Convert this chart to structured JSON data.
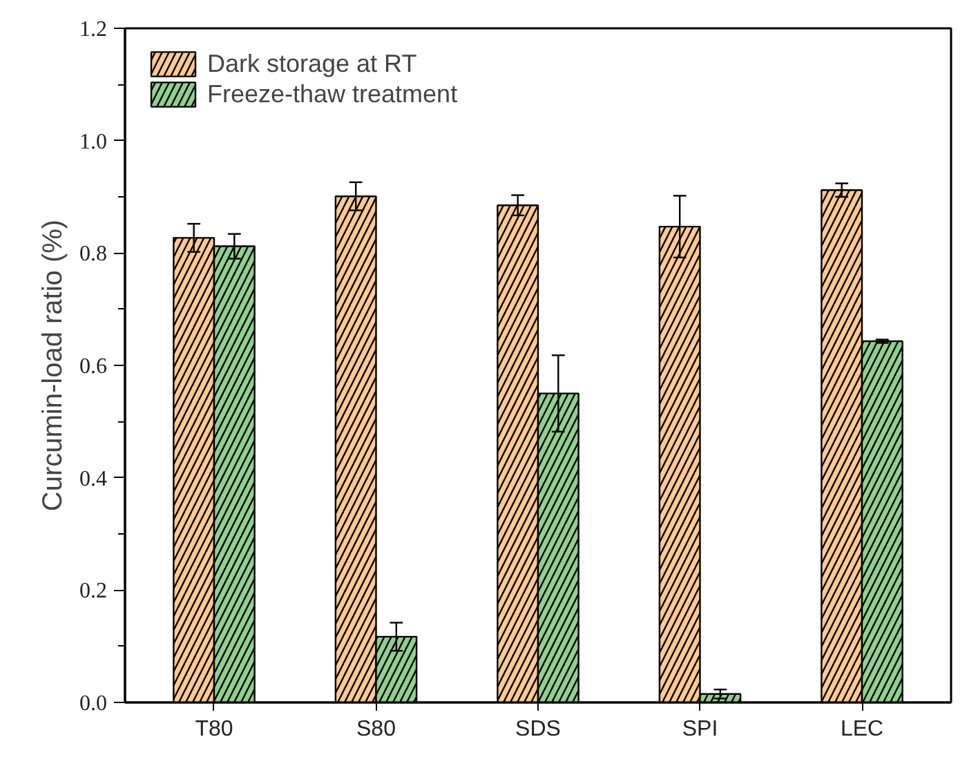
{
  "chart_data": {
    "type": "bar",
    "ylabel": "Curcumin-load ratio (%)",
    "categories": [
      "T80",
      "S80",
      "SDS",
      "SPI",
      "LEC"
    ],
    "series": [
      {
        "name": "Dark storage at RT",
        "color": "#fdc98f",
        "values": [
          0.827,
          0.901,
          0.885,
          0.847,
          0.912
        ],
        "errors": [
          0.025,
          0.025,
          0.018,
          0.055,
          0.012
        ]
      },
      {
        "name": "Freeze-thaw treatment",
        "color": "#8fd18f",
        "values": [
          0.812,
          0.117,
          0.55,
          0.015,
          0.643
        ],
        "errors": [
          0.022,
          0.025,
          0.068,
          0.008,
          0.003
        ]
      }
    ],
    "ylim": [
      0,
      1.2
    ],
    "yticks": [
      {
        "value": 0.0,
        "label": "0.0"
      },
      {
        "value": 0.1,
        "label": null
      },
      {
        "value": 0.2,
        "label": "0.2"
      },
      {
        "value": 0.3,
        "label": null
      },
      {
        "value": 0.4,
        "label": "0.4"
      },
      {
        "value": 0.5,
        "label": null
      },
      {
        "value": 0.6,
        "label": "0.6"
      },
      {
        "value": 0.7,
        "label": null
      },
      {
        "value": 0.8,
        "label": "0.8"
      },
      {
        "value": 0.9,
        "label": null
      },
      {
        "value": 1.0,
        "label": "1.0"
      },
      {
        "value": 1.1,
        "label": null
      },
      {
        "value": 1.2,
        "label": "1.2"
      }
    ],
    "grid": false,
    "legend": "top left"
  }
}
